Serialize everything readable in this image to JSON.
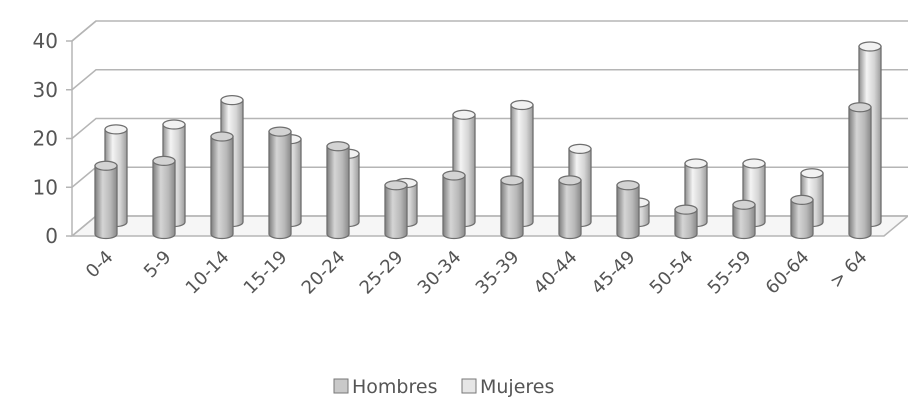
{
  "chart_data": {
    "type": "bar",
    "title": "",
    "xlabel": "",
    "ylabel": "",
    "ylim": [
      0,
      40
    ],
    "yticks": [
      0,
      10,
      20,
      30,
      40
    ],
    "grid": true,
    "legend_position": "bottom",
    "categories": [
      "0-4",
      "5-9",
      "10-14",
      "15-19",
      "20-24",
      "25-29",
      "30-34",
      "35-39",
      "40-44",
      "45-49",
      "50-54",
      "55-59",
      "60-64",
      "> 64"
    ],
    "series": [
      {
        "name": "Hombres",
        "color": "#c9c9c9",
        "values": [
          14,
          15,
          20,
          21,
          18,
          10,
          12,
          11,
          11,
          10,
          5,
          6,
          7,
          26
        ]
      },
      {
        "name": "Mujeres",
        "color": "#e6e6e6",
        "values": [
          19,
          20,
          25,
          17,
          14,
          8,
          22,
          24,
          15,
          4,
          12,
          12,
          10,
          36
        ]
      }
    ]
  }
}
